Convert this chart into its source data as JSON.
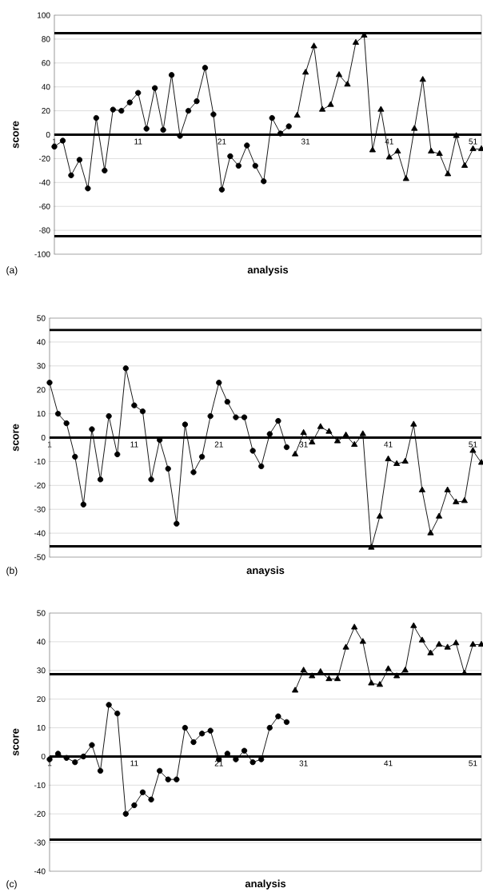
{
  "chart_data": [
    {
      "type": "line",
      "xlabel": "analysis",
      "ylabel": "score",
      "annotations": [
        "(a)"
      ],
      "xlim": [
        1,
        52
      ],
      "ylim": [
        -100,
        100
      ],
      "xticks": [
        1,
        11,
        21,
        31,
        41,
        51
      ],
      "yticks": [
        -100,
        -80,
        -60,
        -40,
        -20,
        0,
        20,
        40,
        60,
        80,
        100
      ],
      "grid": "y",
      "line_style": "solid",
      "ref_lines": [
        {
          "axis": "y",
          "value": 85,
          "color": "#000000"
        },
        {
          "axis": "y",
          "value": 0,
          "color": "#000000"
        },
        {
          "axis": "y",
          "value": -85,
          "color": "#000000"
        }
      ],
      "series": [
        {
          "color": "#000000",
          "marker": "circle",
          "x": [
            1,
            2,
            3,
            4,
            5,
            6,
            7,
            8,
            9,
            10,
            11,
            12,
            13,
            14,
            15,
            16,
            17,
            18,
            19,
            20,
            21,
            22,
            23,
            24,
            25,
            26,
            27,
            28,
            29
          ],
          "values": [
            -10,
            -5,
            -34,
            -21,
            -45,
            14,
            -30,
            21,
            20,
            27,
            35,
            5,
            39,
            4,
            50,
            -1,
            20,
            28,
            56,
            17,
            -46,
            -18,
            -26,
            -9,
            -26,
            -39,
            14,
            1,
            7
          ]
        },
        {
          "color": "#000000",
          "marker": "triangle",
          "x": [
            30,
            31,
            32,
            33,
            34,
            35,
            36,
            37,
            38,
            39,
            40,
            41,
            42,
            43,
            44,
            45,
            46,
            47,
            48,
            49,
            50,
            51,
            52
          ],
          "values": [
            16,
            52,
            74,
            21,
            25,
            50,
            42,
            77,
            83,
            -13,
            21,
            -19,
            -14,
            -37,
            5,
            46,
            -14,
            -16,
            -33,
            -1,
            -26,
            -12,
            -12
          ]
        }
      ]
    },
    {
      "type": "line",
      "xlabel": "anaysis",
      "ylabel": "score",
      "annotations": [
        "(b)"
      ],
      "xlim": [
        1,
        52
      ],
      "ylim": [
        -50,
        50
      ],
      "xticks": [
        1,
        11,
        21,
        31,
        41,
        51
      ],
      "yticks": [
        -50,
        -40,
        -30,
        -20,
        -10,
        0,
        10,
        20,
        30,
        40,
        50
      ],
      "grid": "y",
      "line_style": "solid",
      "ref_lines": [
        {
          "axis": "y",
          "value": 45,
          "color": "#000000"
        },
        {
          "axis": "y",
          "value": 0,
          "color": "#000000"
        },
        {
          "axis": "y",
          "value": -45.5,
          "color": "#000000"
        }
      ],
      "series": [
        {
          "color": "#000000",
          "marker": "circle",
          "x": [
            1,
            2,
            3,
            4,
            5,
            6,
            7,
            8,
            9,
            10,
            11,
            12,
            13,
            14,
            15,
            16,
            17,
            18,
            19,
            20,
            21,
            22,
            23,
            24,
            25,
            26,
            27,
            28,
            29
          ],
          "values": [
            23,
            10,
            6,
            -8,
            -28,
            3.5,
            -17.5,
            9,
            -7,
            29,
            13.5,
            11,
            -17.5,
            -1,
            -13,
            -36,
            5.5,
            -14.5,
            -8,
            9,
            23,
            15,
            8.5,
            8.5,
            -5.5,
            -12,
            1.5,
            7,
            -4
          ]
        },
        {
          "color": "#000000",
          "marker": "triangle",
          "x": [
            30,
            31,
            32,
            33,
            34,
            35,
            36,
            37,
            38,
            39,
            40,
            41,
            42,
            43,
            44,
            45,
            46,
            47,
            48,
            49,
            50,
            51,
            52
          ],
          "values": [
            -7,
            2,
            -2,
            4.5,
            2.5,
            -1.5,
            1,
            -3,
            1.5,
            -46,
            -33,
            -9,
            -11,
            -10,
            5.5,
            -22,
            -40,
            -33,
            -22,
            -27,
            -26.5,
            -5.5,
            -10.5
          ]
        }
      ]
    },
    {
      "type": "line",
      "xlabel": "analysis",
      "ylabel": "score",
      "annotations": [
        "(c)"
      ],
      "xlim": [
        1,
        52
      ],
      "ylim": [
        -40,
        50
      ],
      "xticks": [
        1,
        11,
        21,
        31,
        41,
        51
      ],
      "yticks": [
        -40,
        -30,
        -20,
        -10,
        0,
        10,
        20,
        30,
        40,
        50
      ],
      "grid": "y",
      "line_style": "solid",
      "ref_lines": [
        {
          "axis": "y",
          "value": 28.7,
          "color": "#000000"
        },
        {
          "axis": "y",
          "value": 0,
          "color": "#000000"
        },
        {
          "axis": "y",
          "value": -29,
          "color": "#000000"
        }
      ],
      "series": [
        {
          "color": "#000000",
          "marker": "circle",
          "x": [
            1,
            2,
            3,
            4,
            5,
            6,
            7,
            8,
            9,
            10,
            11,
            12,
            13,
            14,
            15,
            16,
            17,
            18,
            19,
            20,
            21,
            22,
            23,
            24,
            25,
            26,
            27,
            28,
            29
          ],
          "values": [
            -1,
            1,
            -0.5,
            -2,
            0,
            4,
            -5,
            18,
            15,
            -20,
            -17,
            -12.5,
            -15,
            -5,
            -8,
            -8,
            10,
            5,
            8,
            9,
            -1,
            1,
            -1,
            2,
            -2,
            -1,
            10,
            14,
            12
          ]
        },
        {
          "color": "#000000",
          "marker": "triangle",
          "x": [
            30,
            31,
            32,
            33,
            34,
            35,
            36,
            37,
            38,
            39,
            40,
            41,
            42,
            43,
            44,
            45,
            46,
            47,
            48,
            49,
            50,
            51,
            52
          ],
          "values": [
            23,
            30,
            28,
            29.5,
            27,
            27,
            38,
            45,
            40,
            25.5,
            25,
            30.5,
            28,
            30,
            45.5,
            40.5,
            36,
            39,
            38,
            39.5,
            29,
            39,
            39
          ]
        }
      ]
    }
  ]
}
